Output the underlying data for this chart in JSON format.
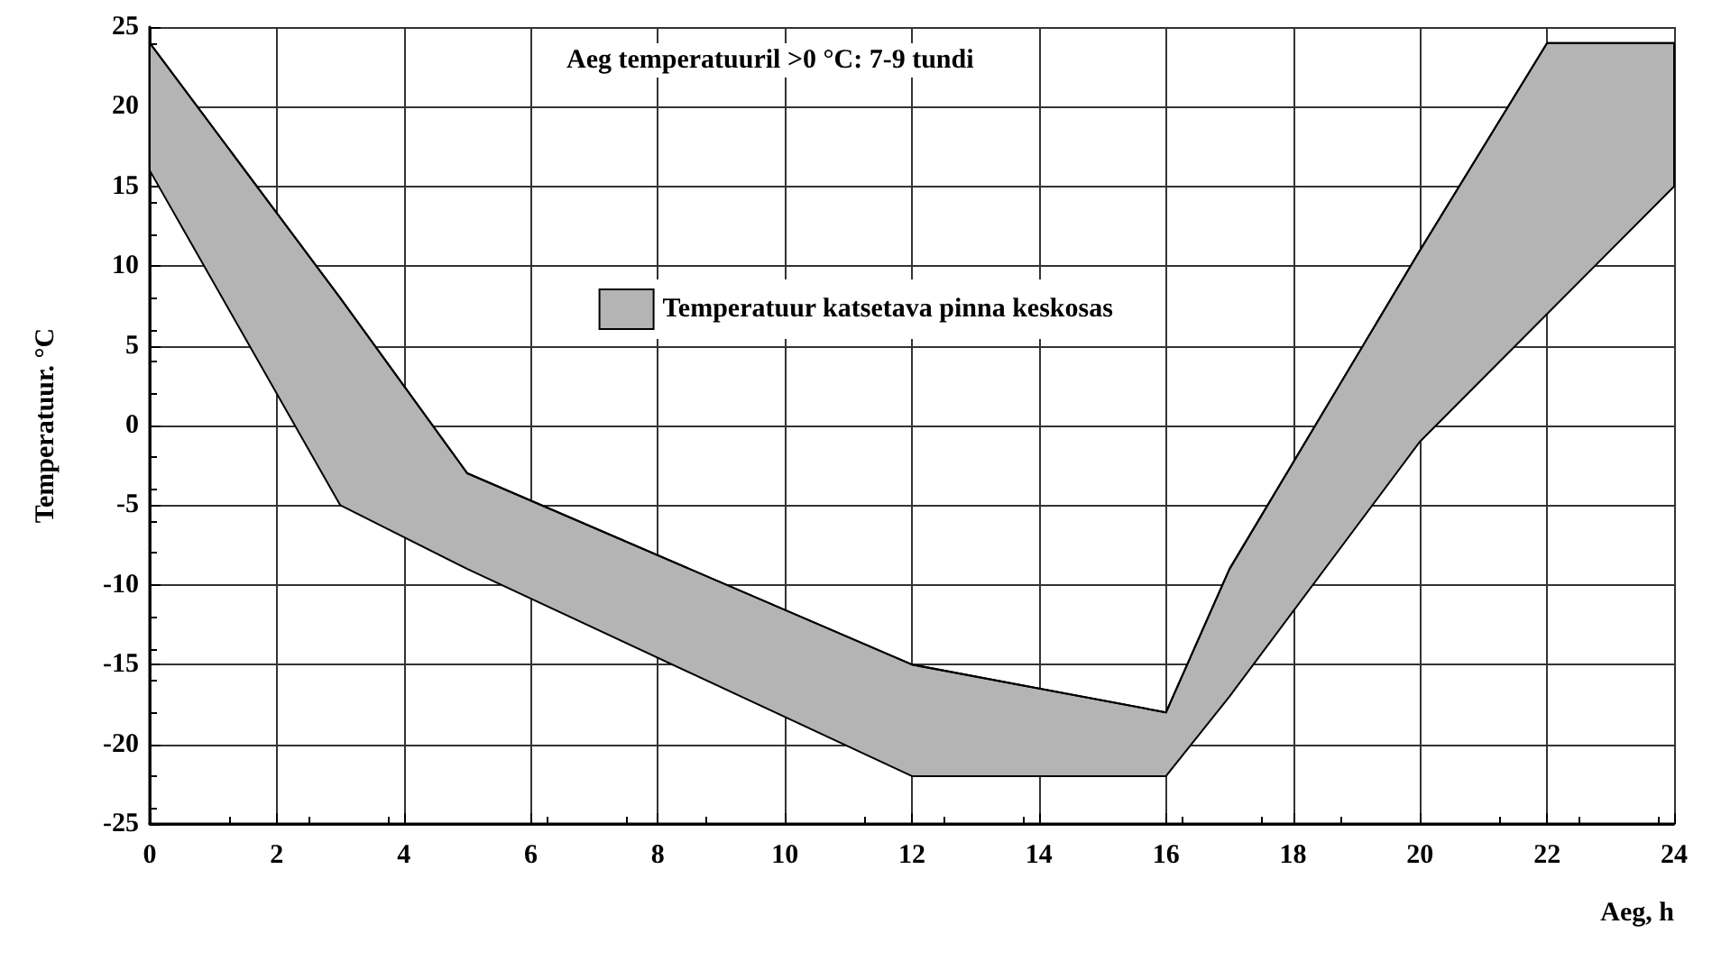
{
  "chart_data": {
    "type": "line",
    "xlabel": "Aeg, h",
    "ylabel": "Temperatuur. °C",
    "annotations": [
      "Aeg temperatuuril >0 °C: 7-9 tundi"
    ],
    "series": [
      {
        "name": "Temperatuur katsetava pinna keskosas",
        "color": "#000000",
        "x": [
          0,
          3,
          5,
          12,
          16,
          17,
          20,
          22,
          24
        ],
        "values": [
          24,
          8,
          -3,
          -15,
          -18,
          -9,
          11,
          24,
          24
        ],
        "upper": [
          24,
          8,
          -3,
          -15,
          -18,
          -9,
          11,
          24,
          24
        ],
        "lower": [
          16,
          -5,
          -9,
          -22,
          -22,
          -17,
          -1,
          7,
          15
        ]
      }
    ],
    "xlim": [
      0,
      24
    ],
    "xticks": [
      0,
      2,
      4,
      6,
      8,
      10,
      12,
      14,
      16,
      18,
      20,
      22,
      24
    ],
    "ylim": [
      -25,
      25
    ],
    "yticks": [
      -25,
      -20,
      -15,
      -10,
      -5,
      0,
      5,
      10,
      15,
      20,
      25
    ],
    "grid": true,
    "legend": "top"
  }
}
